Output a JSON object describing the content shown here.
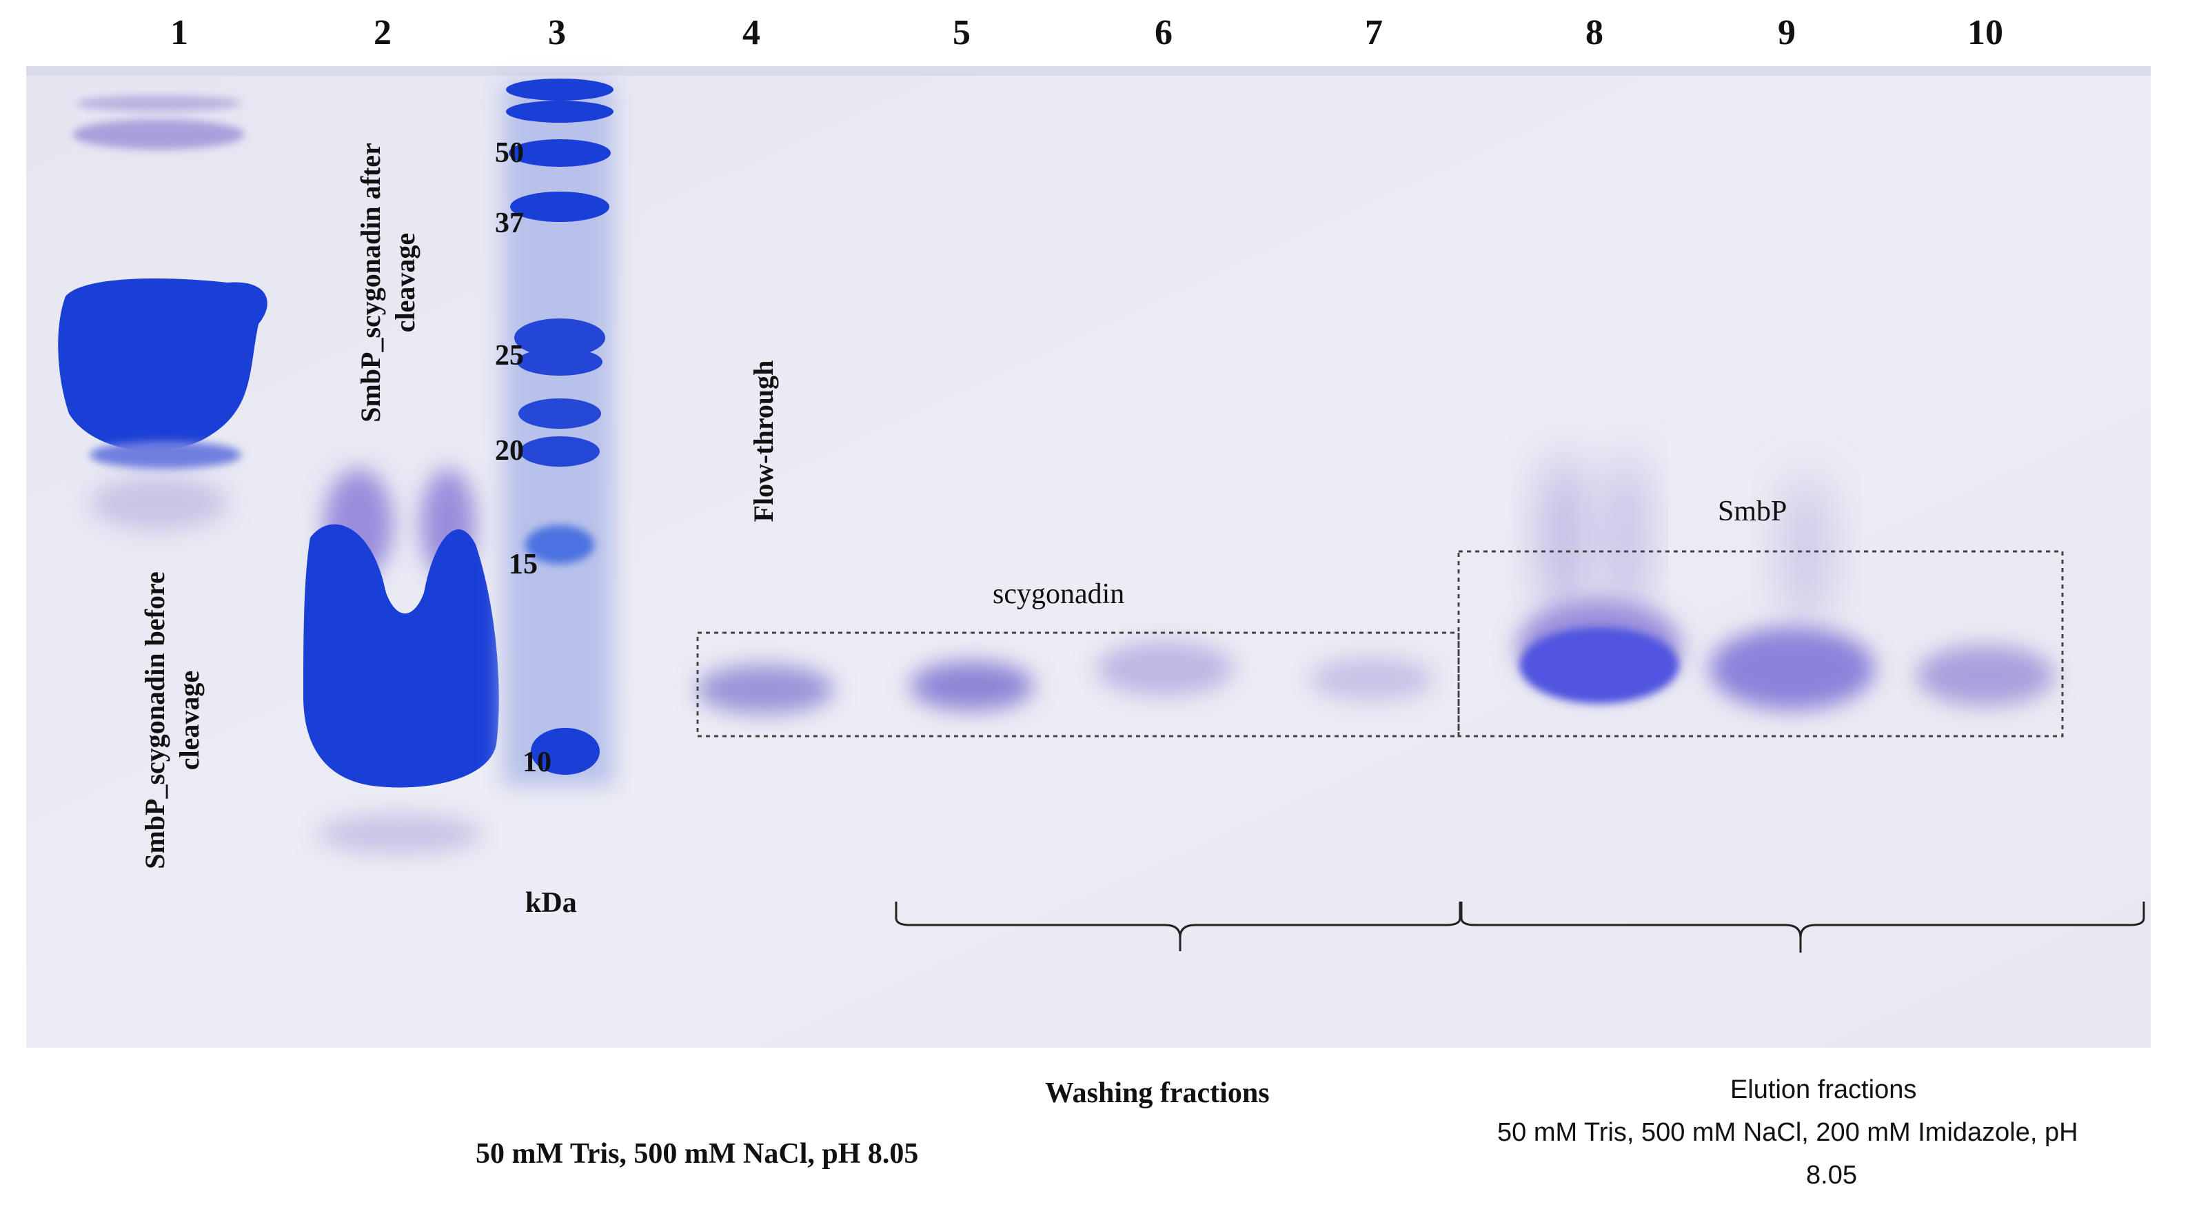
{
  "lanes": [
    "1",
    "2",
    "3",
    "4",
    "5",
    "6",
    "7",
    "8",
    "9",
    "10"
  ],
  "marker": {
    "values": [
      "50",
      "37",
      "25",
      "20",
      "15",
      "10"
    ],
    "unit_label": "kDa"
  },
  "lane_labels": {
    "lane1": "SmbP_scygonadin before cleavage",
    "lane2": "SmbP_scygonadin after cleavage",
    "lane4": "Flow-through"
  },
  "band_labels": {
    "scygonadin": "scygonadin",
    "smbp": "SmbP"
  },
  "groups": {
    "washing": {
      "title": "Washing fractions",
      "buffer": "50 mM Tris, 500 mM NaCl, pH 8.05"
    },
    "elution": {
      "title": "Elution fractions",
      "buffer_line1": "50 mM Tris, 500 mM NaCl, 200 mM Imidazole, pH",
      "buffer_line2": "8.05"
    }
  },
  "colors": {
    "gel_background": "#e9e9f3",
    "stain_strong": "#1a3fd6",
    "stain_faint": "#8f8ed6"
  }
}
